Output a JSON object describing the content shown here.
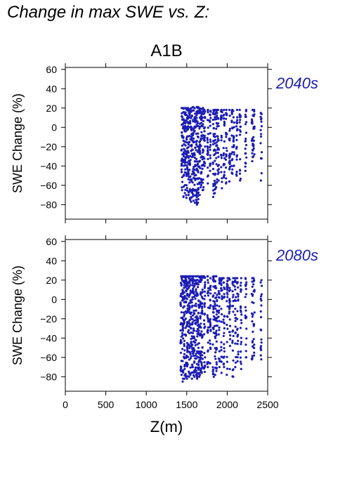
{
  "title": "Change in max SWE vs. Z:",
  "colors": {
    "points": "#1c1cb4",
    "period_label": "#1c1cb4",
    "axes": "#000000"
  },
  "chart_data": [
    {
      "type": "scatter",
      "scenario": "A1B",
      "period_label": "2040s",
      "xlabel": "Z(m)",
      "ylabel": "SWE Change (%)",
      "xlim": [
        0,
        2500
      ],
      "ylim": [
        -95,
        62
      ],
      "xticks": [
        0,
        500,
        1000,
        1500,
        2000,
        2500
      ],
      "yticks": [
        -80,
        -60,
        -40,
        -20,
        0,
        20,
        40,
        60
      ],
      "show_x_tick_labels": false,
      "columns": [
        {
          "x": 1440,
          "ymin": -65,
          "ymax": 20,
          "n": 30
        },
        {
          "x": 1460,
          "ymin": -72,
          "ymax": 20,
          "n": 34
        },
        {
          "x": 1480,
          "ymin": -68,
          "ymax": 20,
          "n": 34
        },
        {
          "x": 1500,
          "ymin": -73,
          "ymax": 20,
          "n": 34
        },
        {
          "x": 1520,
          "ymin": -70,
          "ymax": 20,
          "n": 34
        },
        {
          "x": 1540,
          "ymin": -75,
          "ymax": 19,
          "n": 34
        },
        {
          "x": 1560,
          "ymin": -77,
          "ymax": 20,
          "n": 34
        },
        {
          "x": 1580,
          "ymin": -76,
          "ymax": 21,
          "n": 34
        },
        {
          "x": 1600,
          "ymin": -78,
          "ymax": 20,
          "n": 34
        },
        {
          "x": 1620,
          "ymin": -80,
          "ymax": 21,
          "n": 34
        },
        {
          "x": 1640,
          "ymin": -78,
          "ymax": 21,
          "n": 34
        },
        {
          "x": 1660,
          "ymin": -70,
          "ymax": 20,
          "n": 34
        },
        {
          "x": 1680,
          "ymin": -62,
          "ymax": 19,
          "n": 34
        },
        {
          "x": 1700,
          "ymin": -65,
          "ymax": 20,
          "n": 30
        },
        {
          "x": 1720,
          "ymin": -40,
          "ymax": 18,
          "n": 24
        },
        {
          "x": 1760,
          "ymin": -58,
          "ymax": 18,
          "n": 24
        },
        {
          "x": 1790,
          "ymin": -45,
          "ymax": 17,
          "n": 22
        },
        {
          "x": 1830,
          "ymin": -72,
          "ymax": 18,
          "n": 26
        },
        {
          "x": 1850,
          "ymin": -68,
          "ymax": 18,
          "n": 26
        },
        {
          "x": 1870,
          "ymin": -62,
          "ymax": 18,
          "n": 24
        },
        {
          "x": 1890,
          "ymin": -55,
          "ymax": 18,
          "n": 22
        },
        {
          "x": 1930,
          "ymin": -63,
          "ymax": 18,
          "n": 24
        },
        {
          "x": 1960,
          "ymin": -52,
          "ymax": 18,
          "n": 22
        },
        {
          "x": 1990,
          "ymin": -58,
          "ymax": 18,
          "n": 22
        },
        {
          "x": 2030,
          "ymin": -56,
          "ymax": 18,
          "n": 22
        },
        {
          "x": 2060,
          "ymin": -48,
          "ymax": 18,
          "n": 20
        },
        {
          "x": 2080,
          "ymin": -40,
          "ymax": 17,
          "n": 18
        },
        {
          "x": 2120,
          "ymin": -50,
          "ymax": 18,
          "n": 20
        },
        {
          "x": 2160,
          "ymin": -55,
          "ymax": 18,
          "n": 20
        },
        {
          "x": 2230,
          "ymin": -45,
          "ymax": 18,
          "n": 20
        },
        {
          "x": 2310,
          "ymin": -35,
          "ymax": 18,
          "n": 18
        },
        {
          "x": 2330,
          "ymin": -30,
          "ymax": 18,
          "n": 16
        },
        {
          "x": 2420,
          "ymin": -55,
          "ymax": 15,
          "n": 18
        }
      ]
    },
    {
      "type": "scatter",
      "scenario": "",
      "period_label": "2080s",
      "xlabel": "Z(m)",
      "ylabel": "SWE Change (%)",
      "xlim": [
        0,
        2500
      ],
      "ylim": [
        -95,
        62
      ],
      "xticks": [
        0,
        500,
        1000,
        1500,
        2000,
        2500
      ],
      "yticks": [
        -80,
        -60,
        -40,
        -20,
        0,
        20,
        40,
        60
      ],
      "show_x_tick_labels": true,
      "columns": [
        {
          "x": 1430,
          "ymin": -78,
          "ymax": 24,
          "n": 34
        },
        {
          "x": 1450,
          "ymin": -85,
          "ymax": 24,
          "n": 36
        },
        {
          "x": 1470,
          "ymin": -82,
          "ymax": 24,
          "n": 36
        },
        {
          "x": 1490,
          "ymin": -80,
          "ymax": 24,
          "n": 36
        },
        {
          "x": 1510,
          "ymin": -82,
          "ymax": 24,
          "n": 36
        },
        {
          "x": 1530,
          "ymin": -80,
          "ymax": 24,
          "n": 36
        },
        {
          "x": 1550,
          "ymin": -78,
          "ymax": 24,
          "n": 36
        },
        {
          "x": 1570,
          "ymin": -82,
          "ymax": 24,
          "n": 36
        },
        {
          "x": 1590,
          "ymin": -80,
          "ymax": 24,
          "n": 36
        },
        {
          "x": 1610,
          "ymin": -78,
          "ymax": 24,
          "n": 36
        },
        {
          "x": 1630,
          "ymin": -82,
          "ymax": 24,
          "n": 36
        },
        {
          "x": 1650,
          "ymin": -80,
          "ymax": 24,
          "n": 36
        },
        {
          "x": 1670,
          "ymin": -78,
          "ymax": 24,
          "n": 36
        },
        {
          "x": 1690,
          "ymin": -76,
          "ymax": 24,
          "n": 34
        },
        {
          "x": 1720,
          "ymin": -75,
          "ymax": 24,
          "n": 30
        },
        {
          "x": 1760,
          "ymin": -70,
          "ymax": 24,
          "n": 28
        },
        {
          "x": 1790,
          "ymin": -66,
          "ymax": 22,
          "n": 26
        },
        {
          "x": 1830,
          "ymin": -80,
          "ymax": 24,
          "n": 30
        },
        {
          "x": 1850,
          "ymin": -78,
          "ymax": 24,
          "n": 30
        },
        {
          "x": 1870,
          "ymin": -74,
          "ymax": 24,
          "n": 28
        },
        {
          "x": 1900,
          "ymin": -70,
          "ymax": 22,
          "n": 26
        },
        {
          "x": 1930,
          "ymin": -76,
          "ymax": 22,
          "n": 26
        },
        {
          "x": 1960,
          "ymin": -70,
          "ymax": 22,
          "n": 24
        },
        {
          "x": 2000,
          "ymin": -78,
          "ymax": 22,
          "n": 26
        },
        {
          "x": 2030,
          "ymin": -72,
          "ymax": 22,
          "n": 24
        },
        {
          "x": 2070,
          "ymin": -80,
          "ymax": 22,
          "n": 24
        },
        {
          "x": 2100,
          "ymin": -70,
          "ymax": 22,
          "n": 22
        },
        {
          "x": 2130,
          "ymin": -64,
          "ymax": 22,
          "n": 22
        },
        {
          "x": 2170,
          "ymin": -72,
          "ymax": 22,
          "n": 22
        },
        {
          "x": 2230,
          "ymin": -60,
          "ymax": 22,
          "n": 22
        },
        {
          "x": 2310,
          "ymin": -62,
          "ymax": 22,
          "n": 20
        },
        {
          "x": 2330,
          "ymin": -58,
          "ymax": 22,
          "n": 18
        },
        {
          "x": 2420,
          "ymin": -62,
          "ymax": 20,
          "n": 20
        }
      ]
    }
  ]
}
